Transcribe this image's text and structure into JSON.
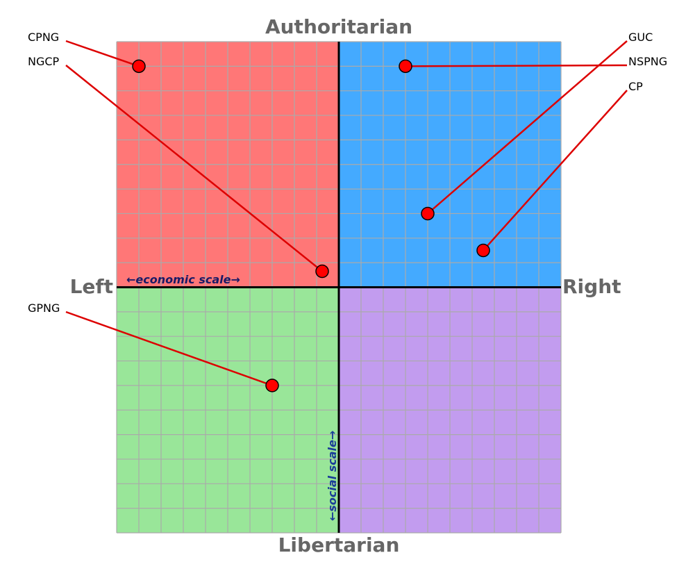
{
  "chart_data": {
    "type": "scatter",
    "title": "",
    "axis_titles": {
      "top": "Authoritarian",
      "bottom": "Libertarian",
      "left": "Left",
      "right": "Right"
    },
    "scale_labels": {
      "economic": "←economic scale→",
      "social": "←social scale→"
    },
    "xlim": [
      -10,
      10
    ],
    "ylim": [
      -10,
      10
    ],
    "grid": true,
    "quadrant_colors": {
      "auth_left": "#ff7777",
      "auth_right": "#44aaff",
      "lib_left": "#99e699",
      "lib_right": "#c29cef"
    },
    "point_color": "#ff0000",
    "line_color": "#dd0000",
    "points": [
      {
        "label": "CPNG",
        "x": -9,
        "y": 9,
        "side": "left"
      },
      {
        "label": "NGCP",
        "x": -0.75,
        "y": 0.65,
        "side": "left"
      },
      {
        "label": "GPNG",
        "x": -3,
        "y": -4,
        "side": "left"
      },
      {
        "label": "GUC",
        "x": 4,
        "y": 3,
        "side": "right"
      },
      {
        "label": "NSPNG",
        "x": 3,
        "y": 9,
        "side": "right"
      },
      {
        "label": "CP",
        "x": 6.5,
        "y": 1.5,
        "side": "right"
      }
    ]
  }
}
